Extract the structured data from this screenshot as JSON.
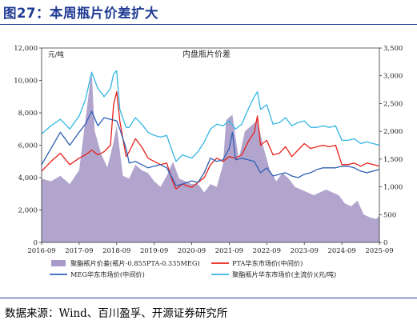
{
  "figure": {
    "title": "图27：本周瓶片价差扩大",
    "source": "数据来源：Wind、百川盈孚、开源证券研究所"
  },
  "chart_data": {
    "type": "line",
    "title": "内盘瓶片价差",
    "ylabel": "元/吨",
    "y_left": {
      "lim": [
        0,
        12000
      ],
      "ticks": [
        "0",
        "2,000",
        "4,000",
        "6,000",
        "8,000",
        "10,000",
        "12,000"
      ]
    },
    "y_right": {
      "lim": [
        0,
        3500
      ],
      "ticks": [
        "0",
        "500",
        "1,000",
        "1,500",
        "2,000",
        "2,500",
        "3,000",
        "3,500"
      ]
    },
    "x_lim": [
      "2016-09",
      "2025-09"
    ],
    "x_ticks": [
      "2016-09",
      "2017-09",
      "2018-09",
      "2019-09",
      "2020-09",
      "2021-09",
      "2022-09",
      "2023-09",
      "2024-09",
      "2025-09"
    ],
    "grid": false,
    "legend_position": "bottom",
    "series": [
      {
        "name": "聚酯瓶片价差(瓶片-0.855PTA-0.335MEG)",
        "type": "area",
        "axis": "right",
        "color": "#a99bc9",
        "x": [
          "2016-09",
          "2016-12",
          "2017-03",
          "2017-06",
          "2017-09",
          "2017-11",
          "2018-01",
          "2018-02",
          "2018-04",
          "2018-06",
          "2018-08",
          "2018-09",
          "2018-11",
          "2019-01",
          "2019-03",
          "2019-05",
          "2019-07",
          "2019-09",
          "2019-11",
          "2020-01",
          "2020-03",
          "2020-05",
          "2020-07",
          "2020-09",
          "2020-11",
          "2021-01",
          "2021-03",
          "2021-05",
          "2021-07",
          "2021-08",
          "2021-10",
          "2021-12",
          "2022-02",
          "2022-04",
          "2022-06",
          "2022-08",
          "2022-10",
          "2022-12",
          "2023-02",
          "2023-04",
          "2023-06",
          "2023-08",
          "2023-10",
          "2023-12",
          "2024-02",
          "2024-04",
          "2024-06",
          "2024-08",
          "2024-10",
          "2024-12",
          "2025-02",
          "2025-04",
          "2025-06",
          "2025-08",
          "2025-09"
        ],
        "values": [
          1150,
          1100,
          1200,
          1050,
          1300,
          2200,
          3100,
          2000,
          1600,
          1350,
          1800,
          2100,
          1200,
          1150,
          1400,
          1300,
          1250,
          1100,
          1000,
          1200,
          1450,
          1150,
          1100,
          1050,
          1050,
          900,
          1050,
          1000,
          1400,
          2200,
          2300,
          1500,
          2000,
          2100,
          2200,
          1700,
          1300,
          1100,
          1250,
          1150,
          1000,
          950,
          900,
          850,
          900,
          950,
          900,
          850,
          700,
          650,
          750,
          500,
          450,
          420,
          480
        ]
      },
      {
        "name": "PTA华东市场价(中间价)",
        "type": "line",
        "axis": "left",
        "color": "#e8201c",
        "x": [
          "2016-09",
          "2016-12",
          "2017-03",
          "2017-06",
          "2017-09",
          "2017-11",
          "2018-01",
          "2018-03",
          "2018-05",
          "2018-07",
          "2018-08",
          "2018-09",
          "2018-10",
          "2018-12",
          "2019-01",
          "2019-03",
          "2019-05",
          "2019-07",
          "2019-09",
          "2019-11",
          "2020-01",
          "2020-03",
          "2020-04",
          "2020-06",
          "2020-09",
          "2020-11",
          "2021-01",
          "2021-03",
          "2021-05",
          "2021-07",
          "2021-09",
          "2021-11",
          "2022-01",
          "2022-03",
          "2022-05",
          "2022-06",
          "2022-07",
          "2022-09",
          "2022-11",
          "2023-01",
          "2023-03",
          "2023-05",
          "2023-07",
          "2023-09",
          "2023-11",
          "2024-01",
          "2024-03",
          "2024-05",
          "2024-07",
          "2024-09",
          "2024-11",
          "2025-01",
          "2025-03",
          "2025-05",
          "2025-07",
          "2025-09"
        ],
        "values": [
          4400,
          5000,
          5500,
          4800,
          5200,
          5400,
          5700,
          5400,
          5600,
          6000,
          8500,
          9300,
          7500,
          5300,
          5600,
          6400,
          5900,
          5200,
          5000,
          4800,
          4900,
          3700,
          3300,
          3600,
          3400,
          3700,
          4000,
          4800,
          5200,
          5000,
          5300,
          5200,
          5400,
          6200,
          6800,
          7800,
          6000,
          6300,
          5400,
          5500,
          5900,
          5300,
          5700,
          6100,
          5800,
          5900,
          6000,
          5900,
          6000,
          4800,
          4800,
          4900,
          4700,
          4900,
          4800,
          4700
        ]
      },
      {
        "name": "MEG华东市场价(中间价)",
        "type": "line",
        "axis": "left",
        "color": "#2e5fb4",
        "x": [
          "2016-09",
          "2016-12",
          "2017-03",
          "2017-06",
          "2017-09",
          "2017-11",
          "2018-01",
          "2018-03",
          "2018-05",
          "2018-07",
          "2018-09",
          "2018-10",
          "2018-12",
          "2019-01",
          "2019-03",
          "2019-05",
          "2019-07",
          "2019-09",
          "2019-11",
          "2020-01",
          "2020-03",
          "2020-04",
          "2020-06",
          "2020-09",
          "2020-11",
          "2021-01",
          "2021-03",
          "2021-05",
          "2021-07",
          "2021-09",
          "2021-10",
          "2021-11",
          "2022-01",
          "2022-03",
          "2022-05",
          "2022-07",
          "2022-09",
          "2022-11",
          "2023-01",
          "2023-03",
          "2023-05",
          "2023-07",
          "2023-09",
          "2023-11",
          "2024-01",
          "2024-03",
          "2024-05",
          "2024-07",
          "2024-09",
          "2024-11",
          "2025-01",
          "2025-03",
          "2025-05",
          "2025-07",
          "2025-09"
        ],
        "values": [
          4800,
          5800,
          6800,
          6000,
          6800,
          7300,
          8100,
          7200,
          7700,
          7600,
          7500,
          7000,
          5800,
          4900,
          5000,
          4800,
          4600,
          4700,
          4800,
          4600,
          3900,
          3500,
          3600,
          3800,
          3700,
          4300,
          5200,
          5000,
          5100,
          5800,
          6800,
          5100,
          5200,
          5100,
          5000,
          4300,
          4600,
          4100,
          4200,
          4300,
          4100,
          4000,
          4200,
          4300,
          4500,
          4600,
          4600,
          4600,
          4700,
          4700,
          4600,
          4400,
          4300,
          4400,
          4500
        ]
      },
      {
        "name": "聚酯瓶片华东市场价(主流价)(元/吨)",
        "type": "line",
        "axis": "left",
        "color": "#34b6e3",
        "x": [
          "2016-09",
          "2016-12",
          "2017-03",
          "2017-06",
          "2017-09",
          "2017-11",
          "2018-01",
          "2018-03",
          "2018-05",
          "2018-07",
          "2018-08",
          "2018-09",
          "2018-10",
          "2018-12",
          "2019-01",
          "2019-03",
          "2019-05",
          "2019-07",
          "2019-09",
          "2019-11",
          "2020-01",
          "2020-03",
          "2020-04",
          "2020-06",
          "2020-09",
          "2020-11",
          "2021-01",
          "2021-03",
          "2021-05",
          "2021-07",
          "2021-09",
          "2021-11",
          "2022-01",
          "2022-03",
          "2022-05",
          "2022-06",
          "2022-07",
          "2022-09",
          "2022-11",
          "2023-01",
          "2023-03",
          "2023-05",
          "2023-07",
          "2023-09",
          "2023-11",
          "2024-01",
          "2024-03",
          "2024-05",
          "2024-07",
          "2024-09",
          "2024-11",
          "2025-01",
          "2025-03",
          "2025-05",
          "2025-07",
          "2025-09"
        ],
        "values": [
          6700,
          7200,
          7600,
          7000,
          7800,
          8800,
          10500,
          9500,
          9000,
          9500,
          10400,
          10600,
          8200,
          7100,
          7100,
          7700,
          7300,
          6800,
          6600,
          6500,
          6600,
          5500,
          5000,
          5400,
          5200,
          5600,
          6200,
          7000,
          7300,
          7200,
          7500,
          7000,
          7300,
          8200,
          9000,
          9300,
          8200,
          8500,
          7300,
          7400,
          7700,
          7200,
          7400,
          7500,
          7100,
          7100,
          7200,
          7100,
          7200,
          6300,
          6300,
          6400,
          6100,
          6200,
          6100,
          6000
        ]
      }
    ]
  }
}
